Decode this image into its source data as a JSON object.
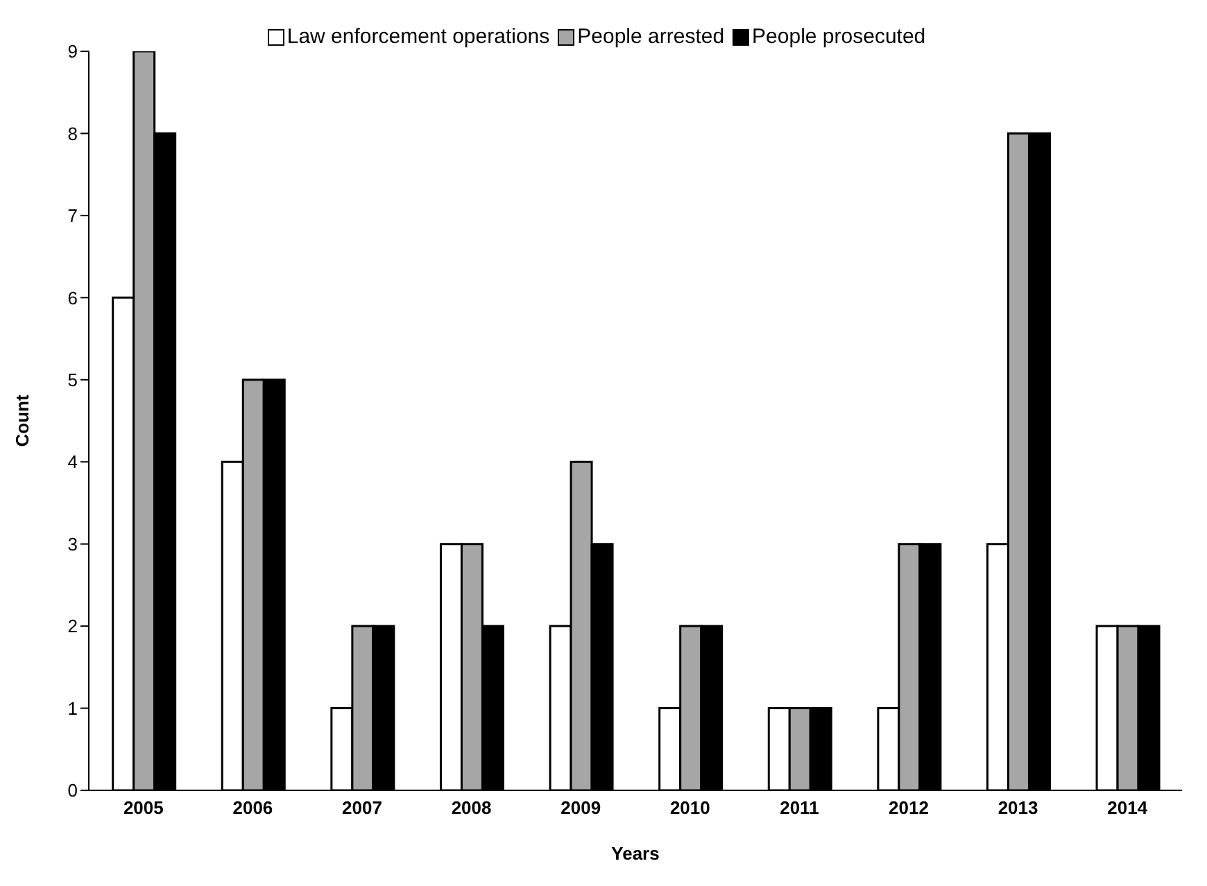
{
  "chart_data": {
    "type": "bar",
    "xlabel": "Years",
    "ylabel": "Count",
    "categories": [
      "2005",
      "2006",
      "2007",
      "2008",
      "2009",
      "2010",
      "2011",
      "2012",
      "2013",
      "2014"
    ],
    "series": [
      {
        "name": "Law enforcement operations",
        "color": "#ffffff",
        "values": [
          6,
          4,
          1,
          3,
          2,
          1,
          1,
          1,
          3,
          2
        ]
      },
      {
        "name": "People arrested",
        "color": "#a6a6a6",
        "values": [
          9,
          5,
          2,
          3,
          4,
          2,
          1,
          3,
          8,
          2
        ]
      },
      {
        "name": "People prosecuted",
        "color": "#000000",
        "values": [
          8,
          5,
          2,
          2,
          3,
          2,
          1,
          3,
          8,
          2
        ]
      }
    ],
    "ylim": [
      0,
      9
    ],
    "yticks": [
      0,
      1,
      2,
      3,
      4,
      5,
      6,
      7,
      8,
      9
    ],
    "grid": false,
    "legend": "top"
  }
}
